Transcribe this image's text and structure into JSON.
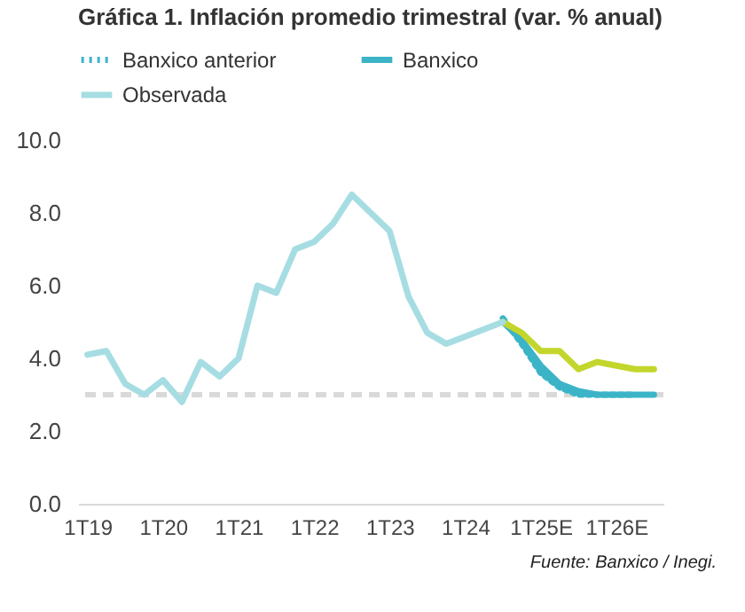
{
  "chart_data": {
    "type": "line",
    "title": "Gráfica 1. Inflación promedio trimestral (var. % anual)",
    "categories": [
      "1T19",
      null,
      null,
      null,
      "1T20",
      null,
      null,
      null,
      "1T21",
      null,
      null,
      null,
      "1T22",
      null,
      null,
      null,
      "1T23",
      null,
      null,
      null,
      "1T24",
      null,
      null,
      null,
      "1T25E",
      null,
      null,
      null,
      "1T26E",
      null,
      null
    ],
    "series": [
      {
        "name": "Banxico anterior",
        "color": "#3cb4c8",
        "line_style": "dotted",
        "values": [
          null,
          null,
          null,
          null,
          null,
          null,
          null,
          null,
          null,
          null,
          null,
          null,
          null,
          null,
          null,
          null,
          null,
          null,
          null,
          null,
          null,
          null,
          5.1,
          4.4,
          3.6,
          3.2,
          3.0,
          3.0,
          3.0,
          3.0,
          null
        ]
      },
      {
        "name": "Banxico",
        "color": "#3cb4c8",
        "line_style": "solid",
        "values": [
          null,
          null,
          null,
          null,
          null,
          null,
          null,
          null,
          null,
          null,
          null,
          null,
          null,
          null,
          null,
          null,
          null,
          null,
          null,
          null,
          null,
          null,
          5.0,
          4.5,
          3.8,
          3.3,
          3.1,
          3.0,
          3.0,
          3.0,
          3.0
        ]
      },
      {
        "color": "#c3d62b",
        "line_style": "solid",
        "values": [
          null,
          null,
          null,
          null,
          null,
          null,
          null,
          null,
          null,
          null,
          null,
          null,
          null,
          null,
          null,
          null,
          null,
          null,
          null,
          null,
          null,
          null,
          5.0,
          4.7,
          4.2,
          4.2,
          3.7,
          3.9,
          3.8,
          3.7,
          3.7
        ]
      },
      {
        "name": "Observada",
        "color": "#a6dde3",
        "line_style": "solid",
        "values": [
          4.1,
          4.2,
          3.3,
          3.0,
          3.4,
          2.8,
          3.9,
          3.5,
          4.0,
          6.0,
          5.8,
          7.0,
          7.2,
          7.7,
          8.5,
          8.0,
          7.5,
          5.7,
          4.7,
          4.4,
          4.6,
          4.8,
          5.0,
          null,
          null,
          null,
          null,
          null,
          null,
          null,
          null
        ]
      }
    ],
    "ylim": [
      0,
      10
    ],
    "yticks": [
      {
        "value": 0,
        "label": "0.0"
      },
      {
        "value": 2,
        "label": "2.0"
      },
      {
        "value": 4,
        "label": "4.0"
      },
      {
        "value": 6,
        "label": "6.0"
      },
      {
        "value": 8,
        "label": "8.0"
      },
      {
        "value": 10,
        "label": "10.0"
      }
    ],
    "ref_lines": [
      {
        "axis": "y",
        "value": 3,
        "color": "#d9d9d9",
        "line_style": "dashed"
      }
    ],
    "legend": "top",
    "grid": false,
    "annotations": [
      "Fuente: Banxico / Inegi."
    ]
  }
}
